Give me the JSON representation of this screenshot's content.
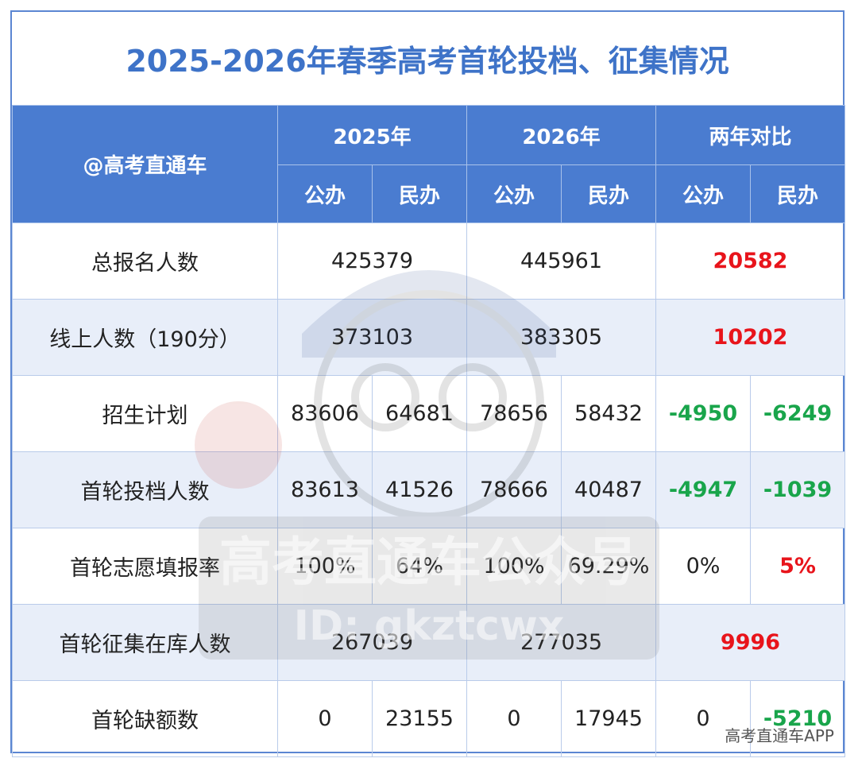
{
  "title": "2025-2026年春季高考首轮投档、征集情况",
  "header": {
    "corner_label": "@高考直通车",
    "groups": [
      "2025年",
      "2026年",
      "两年对比"
    ],
    "subcols": [
      "公办",
      "民办",
      "公办",
      "民办",
      "公办",
      "民办"
    ]
  },
  "rows": [
    {
      "label": "总报名人数",
      "y2025": "425379",
      "y2026": "445961",
      "diff": "20582"
    },
    {
      "label": "线上人数（190分）",
      "y2025": "373103",
      "y2026": "383305",
      "diff": "10202"
    },
    {
      "label": "招生计划",
      "cells": [
        "83606",
        "64681",
        "78656",
        "58432"
      ],
      "d_pub": "-4950",
      "d_pri": "-6249"
    },
    {
      "label": "首轮投档人数",
      "cells": [
        "83613",
        "41526",
        "78666",
        "40487"
      ],
      "d_pub": "-4947",
      "d_pri": "-1039"
    },
    {
      "label": "首轮志愿填报率",
      "cells": [
        "100%",
        "64%",
        "100%",
        "69.29%"
      ],
      "d_pub": "0%",
      "d_pri": "5%"
    },
    {
      "label": "首轮征集在库人数",
      "y2025": "267039",
      "y2026": "277035",
      "diff": "9996"
    },
    {
      "label": "首轮缺额数",
      "cells": [
        "0",
        "23155",
        "0",
        "17945"
      ],
      "d_pub": "0",
      "d_pri": "-5210"
    }
  ],
  "watermark": {
    "line1": "高考直通车公众号",
    "line2": "ID: gkztcwx"
  },
  "footer": {
    "brand": "高考直通车APP"
  },
  "colors": {
    "header_bg": "#4a7cd0",
    "title": "#3e73c8",
    "increase": "#e8141b",
    "decrease": "#19a54b",
    "alt_row": "#e8eef9"
  }
}
